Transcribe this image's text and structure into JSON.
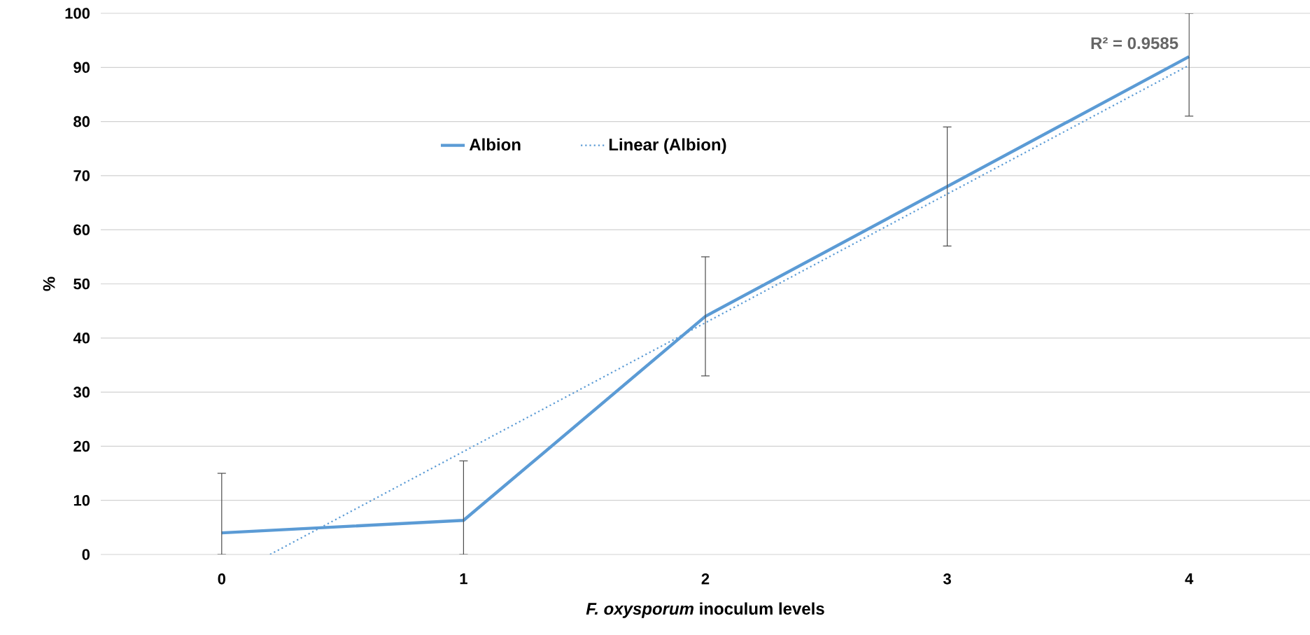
{
  "chart_data": {
    "type": "line",
    "xlabel": "*F. oxysporum* inoculum levels",
    "ylabel": "%",
    "x": [
      0,
      1,
      2,
      3,
      4
    ],
    "xlim": [
      -0.5,
      4.5
    ],
    "xticks": [
      0,
      1,
      2,
      3,
      4
    ],
    "ylim": [
      0,
      100
    ],
    "yticks": [
      0,
      10,
      20,
      30,
      40,
      50,
      60,
      70,
      80,
      90,
      100
    ],
    "grid": "y",
    "legend": "top",
    "line_style": "solid",
    "marker": "none",
    "series": [
      {
        "name": "Albion",
        "color": "#5b9bd5",
        "values": [
          4,
          6.3,
          44,
          68,
          92
        ],
        "errors": [
          [
            0,
            15
          ],
          [
            0,
            17.3
          ],
          11,
          11,
          [
            81,
            100
          ]
        ]
      },
      {
        "name": "Linear (Albion)",
        "type": "line",
        "line_style": "dotted",
        "color": "#5b9bd5",
        "x": [
          0.2,
          4
        ],
        "values": [
          0,
          90.4
        ]
      }
    ],
    "annotations": [
      {
        "text": "R² = 0.9585",
        "x": 4,
        "y": 90.4
      }
    ]
  }
}
